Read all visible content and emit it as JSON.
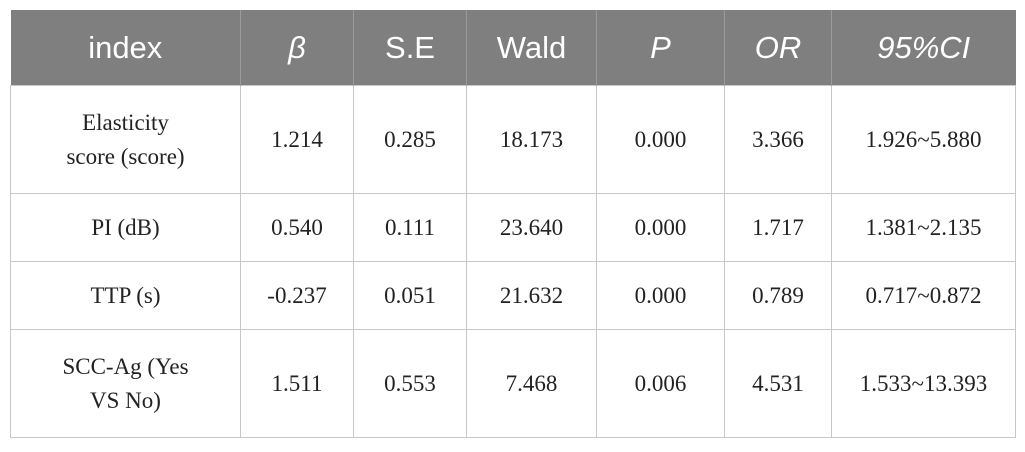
{
  "table": {
    "headers": [
      "index",
      "β",
      "S.E",
      "Wald",
      "P",
      "OR",
      "95%CI"
    ],
    "rows": [
      [
        "Elasticity\nscore (score)",
        "1.214",
        "0.285",
        "18.173",
        "0.000",
        "3.366",
        "1.926~5.880"
      ],
      [
        "PI (dB)",
        "0.540",
        "0.111",
        "23.640",
        "0.000",
        "1.717",
        "1.381~2.135"
      ],
      [
        "TTP (s)",
        "-0.237",
        "0.051",
        "21.632",
        "0.000",
        "0.789",
        "0.717~0.872"
      ],
      [
        "SCC-Ag (Yes\nVS No)",
        "1.511",
        "0.553",
        "7.468",
        "0.006",
        "4.531",
        "1.533~13.393"
      ]
    ]
  },
  "colors": {
    "header_bg": "#7f7f7f",
    "header_text": "#ffffff",
    "grid": "#c8c8c8"
  }
}
